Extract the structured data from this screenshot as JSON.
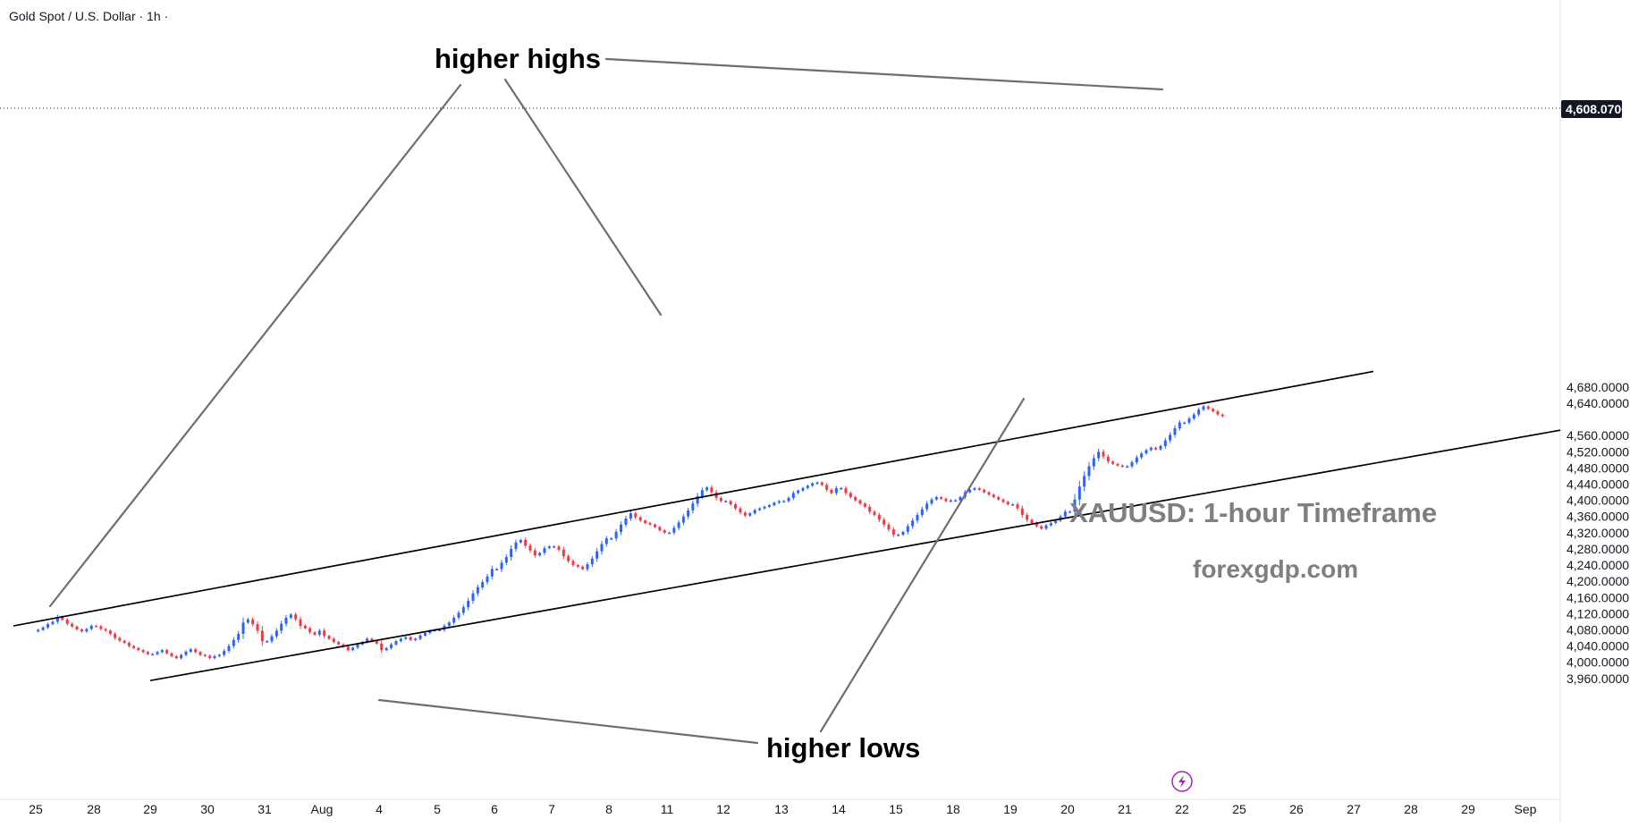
{
  "symbol_title": "Gold Spot / U.S. Dollar · 1h ·",
  "current_price_label": "4,608.0700",
  "annotations": {
    "higher_highs": "higher highs",
    "higher_lows": "higher lows"
  },
  "watermark": {
    "title": "XAUUSD: 1-hour Timeframe",
    "site": "forexgdp.com"
  },
  "colors": {
    "up_candle": "#2962ff",
    "down_candle": "#f23645",
    "trend_line": "#000000",
    "annotation_line": "#6e6e6e",
    "current_price_badge": "#131722",
    "axis_text": "#131722",
    "watermark_text": "#7f7f7f",
    "lightning_icon": "#9c27b0"
  },
  "icons": {
    "lightning": "lightning-icon"
  },
  "chart_data": {
    "type": "candlestick",
    "title": "Gold Spot / U.S. Dollar · 1h ·",
    "x_tick_labels": [
      "25",
      "28",
      "29",
      "30",
      "31",
      "Aug",
      "4",
      "5",
      "6",
      "7",
      "8",
      "11",
      "12",
      "13",
      "14",
      "15",
      "18",
      "19",
      "20",
      "21",
      "22",
      "25",
      "26",
      "27",
      "28",
      "29",
      "Sep"
    ],
    "y_tick_labels": [
      "4,680.0000",
      "4,640.0000",
      "4,608.0700",
      "4,560.0000",
      "4,520.0000",
      "4,480.0000",
      "4,440.0000",
      "4,400.0000",
      "4,360.0000",
      "4,320.0000",
      "4,280.0000",
      "4,240.0000",
      "4,200.0000",
      "4,160.0000",
      "4,120.0000",
      "4,080.0000",
      "4,040.0000",
      "4,000.0000",
      "3,960.0000"
    ],
    "ylim": [
      3930,
      4715
    ],
    "current_price": 4608.07,
    "grid": false,
    "legend": "none",
    "price_path": [
      {
        "day": "25",
        "values": [
          4080,
          4086,
          4094,
          4100,
          4112,
          4105,
          4095,
          4088,
          4081,
          4076,
          4082,
          4090
        ]
      },
      {
        "day": "28",
        "values": [
          4089,
          4082,
          4078,
          4070,
          4060,
          4053,
          4048,
          4040,
          4035,
          4030,
          4025,
          4020
        ]
      },
      {
        "day": "29",
        "values": [
          4020,
          4025,
          4030,
          4022,
          4015,
          4010,
          4018,
          4026,
          4032,
          4025,
          4018,
          4016
        ]
      },
      {
        "day": "30",
        "values": [
          4010,
          4015,
          4018,
          4028,
          4040,
          4055,
          4070,
          4098,
          4106,
          4094,
          4078,
          4052
        ]
      },
      {
        "day": "31",
        "values": [
          4052,
          4064,
          4078,
          4095,
          4110,
          4118,
          4106,
          4090,
          4084,
          4074,
          4068,
          4078
        ]
      },
      {
        "day": "Aug",
        "values": [
          4065,
          4058,
          4050,
          4044,
          4038,
          4030,
          4036,
          4044,
          4050,
          4058,
          4052,
          4046
        ]
      },
      {
        "day": "4",
        "values": [
          4030,
          4035,
          4044,
          4052,
          4058,
          4062,
          4055,
          4058,
          4066,
          4072,
          4078,
          4080
        ]
      },
      {
        "day": "5",
        "values": [
          4080,
          4090,
          4098,
          4110,
          4122,
          4136,
          4152,
          4170,
          4185,
          4198,
          4212,
          4230
        ]
      },
      {
        "day": "6",
        "values": [
          4230,
          4246,
          4260,
          4280,
          4296,
          4302,
          4288,
          4276,
          4264,
          4270,
          4282,
          4286
        ]
      },
      {
        "day": "7",
        "values": [
          4286,
          4278,
          4262,
          4250,
          4240,
          4236,
          4230,
          4242,
          4256,
          4274,
          4292,
          4306
        ]
      },
      {
        "day": "8",
        "values": [
          4306,
          4322,
          4340,
          4355,
          4368,
          4358,
          4350,
          4344,
          4340,
          4334,
          4326,
          4320
        ]
      },
      {
        "day": "11",
        "values": [
          4320,
          4332,
          4345,
          4360,
          4375,
          4392,
          4410,
          4425,
          4432,
          4420,
          4406,
          4398
        ]
      },
      {
        "day": "12",
        "values": [
          4398,
          4390,
          4380,
          4370,
          4362,
          4368,
          4376,
          4380,
          4384,
          4388,
          4394,
          4398
        ]
      },
      {
        "day": "13",
        "values": [
          4398,
          4406,
          4418,
          4424,
          4430,
          4436,
          4442,
          4444,
          4438,
          4426,
          4418,
          4430
        ]
      },
      {
        "day": "14",
        "values": [
          4430,
          4418,
          4408,
          4400,
          4392,
          4384,
          4372,
          4364,
          4352,
          4340,
          4328,
          4315
        ]
      },
      {
        "day": "15",
        "values": [
          4315,
          4322,
          4336,
          4350,
          4364,
          4378,
          4392,
          4402,
          4408,
          4404,
          4398,
          4400
        ]
      },
      {
        "day": "18",
        "values": [
          4400,
          4408,
          4420,
          4426,
          4430,
          4426,
          4420,
          4414,
          4408,
          4402,
          4396,
          4390
        ]
      },
      {
        "day": "19",
        "values": [
          4390,
          4380,
          4364,
          4352,
          4344,
          4336,
          4330,
          4338,
          4344,
          4350,
          4360,
          4372
        ]
      },
      {
        "day": "20",
        "values": [
          4372,
          4402,
          4434,
          4460,
          4484,
          4504,
          4520,
          4508,
          4496,
          4490,
          4486,
          4484
        ]
      },
      {
        "day": "21",
        "values": [
          4484,
          4494,
          4506,
          4516,
          4524,
          4530,
          4526,
          4534,
          4548,
          4562,
          4578,
          4592
        ]
      },
      {
        "day": "22",
        "values": [
          4592,
          4602,
          4612,
          4624,
          4632,
          4626,
          4620,
          4612,
          4608.07
        ]
      }
    ],
    "channel": {
      "upper_line": [
        {
          "day": "25",
          "price": 4100
        },
        {
          "day": "22",
          "price": 4630
        }
      ],
      "lower_line": [
        {
          "day": "Aug",
          "price": 4030
        },
        {
          "day": "19",
          "price": 4332
        }
      ]
    },
    "annotations": [
      {
        "label": "higher highs",
        "points": [
          "25",
          "11",
          "22"
        ]
      },
      {
        "label": "higher lows",
        "points": [
          "4",
          "19"
        ]
      }
    ]
  }
}
